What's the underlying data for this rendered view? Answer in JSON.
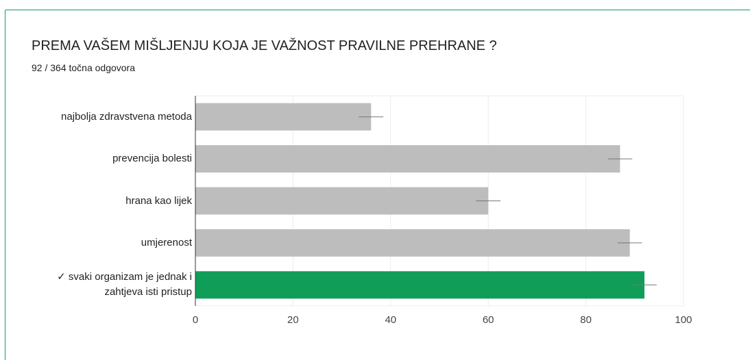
{
  "chart_data": {
    "type": "bar",
    "orientation": "horizontal",
    "title": "PREMA VAŠEM MIŠLJENJU KOJA JE VAŽNOST PRAVILNE PREHRANE ?",
    "subtitle": "92 / 364 točna odgovora",
    "categories": [
      "najbolja zdravstvena metoda",
      "prevencija bolesti",
      "hrana kao lijek",
      "umjerenost",
      "✓ svaki organizam je jednak i zahtjeva isti pristup"
    ],
    "values": [
      36,
      87,
      60,
      89,
      92
    ],
    "errors": [
      2.5,
      2.5,
      2.5,
      2.5,
      2.5
    ],
    "colors": [
      "#bdbdbd",
      "#bdbdbd",
      "#bdbdbd",
      "#bdbdbd",
      "#0f9d58"
    ],
    "xlim": [
      0,
      100
    ],
    "xticks": [
      0,
      20,
      40,
      60,
      80,
      100
    ],
    "grid": true
  }
}
